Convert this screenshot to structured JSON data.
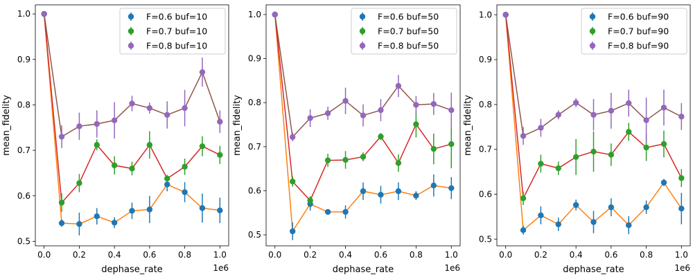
{
  "chart_data": [
    {
      "type": "scatter",
      "xlabel": "dephase_rate",
      "ylabel": "mean_fidelity",
      "x_offset_label": "1e6",
      "xlim": [
        -0.05,
        1.05
      ],
      "ylim": [
        0.49,
        1.02
      ],
      "xticks": [
        0.0,
        0.2,
        0.4,
        0.6,
        0.8,
        1.0
      ],
      "xtick_labels": [
        "0.0",
        "0.2",
        "0.4",
        "0.6",
        "0.8",
        "1.0"
      ],
      "yticks": [
        0.5,
        0.6,
        0.7,
        0.8,
        0.9,
        1.0
      ],
      "ytick_labels": [
        "0.5",
        "0.6",
        "0.7",
        "0.8",
        "0.9",
        "1.0"
      ],
      "legend_position": "top-right",
      "x": [
        0.0,
        0.1,
        0.2,
        0.3,
        0.4,
        0.5,
        0.6,
        0.7,
        0.8,
        0.9,
        1.0
      ],
      "series": [
        {
          "name": "F=0.6 buf=10",
          "marker_color": "#1f77b4",
          "line_color": "#ff7f0e",
          "values": [
            1.0,
            0.54,
            0.538,
            0.555,
            0.541,
            0.567,
            0.57,
            0.625,
            0.608,
            0.573,
            0.568
          ],
          "errors": [
            0.0,
            0.008,
            0.025,
            0.018,
            0.012,
            0.018,
            0.03,
            0.015,
            0.022,
            0.032,
            0.028
          ]
        },
        {
          "name": "F=0.7 buf=10",
          "marker_color": "#2ca02c",
          "line_color": "#d62728",
          "values": [
            1.0,
            0.585,
            0.628,
            0.712,
            0.667,
            0.66,
            0.712,
            0.638,
            0.664,
            0.709,
            0.69
          ],
          "errors": [
            0.0,
            0.02,
            0.02,
            0.012,
            0.02,
            0.015,
            0.03,
            0.008,
            0.018,
            0.022,
            0.02
          ]
        },
        {
          "name": "F=0.8 buf=10",
          "marker_color": "#9467bd",
          "line_color": "#8c564b",
          "values": [
            1.0,
            0.73,
            0.753,
            0.758,
            0.766,
            0.803,
            0.793,
            0.778,
            0.793,
            0.872,
            0.763
          ],
          "errors": [
            0.0,
            0.025,
            0.03,
            0.03,
            0.04,
            0.017,
            0.012,
            0.03,
            0.04,
            0.032,
            0.025
          ]
        }
      ]
    },
    {
      "type": "scatter",
      "xlabel": "dephase_rate",
      "ylabel": "mean_fidelity",
      "x_offset_label": "1e6",
      "xlim": [
        -0.05,
        1.05
      ],
      "ylim": [
        0.475,
        1.022
      ],
      "xticks": [
        0.0,
        0.2,
        0.4,
        0.6,
        0.8,
        1.0
      ],
      "xtick_labels": [
        "0.0",
        "0.2",
        "0.4",
        "0.6",
        "0.8",
        "1.0"
      ],
      "yticks": [
        0.5,
        0.6,
        0.7,
        0.8,
        0.9,
        1.0
      ],
      "ytick_labels": [
        "0.5",
        "0.6",
        "0.7",
        "0.8",
        "0.9",
        "1.0"
      ],
      "legend_position": "top-right",
      "x": [
        0.0,
        0.1,
        0.2,
        0.3,
        0.4,
        0.5,
        0.6,
        0.7,
        0.8,
        0.9,
        1.0
      ],
      "series": [
        {
          "name": "F=0.6 buf=50",
          "marker_color": "#1f77b4",
          "line_color": "#ff7f0e",
          "values": [
            1.0,
            0.508,
            0.57,
            0.552,
            0.552,
            0.599,
            0.591,
            0.599,
            0.589,
            0.612,
            0.606
          ],
          "errors": [
            0.0,
            0.02,
            0.015,
            0.005,
            0.015,
            0.02,
            0.02,
            0.02,
            0.01,
            0.025,
            0.025
          ]
        },
        {
          "name": "F=0.7 buf=50",
          "marker_color": "#2ca02c",
          "line_color": "#d62728",
          "values": [
            1.0,
            0.621,
            0.578,
            0.669,
            0.67,
            0.677,
            0.723,
            0.663,
            0.751,
            0.695,
            0.706
          ],
          "errors": [
            0.0,
            0.012,
            0.01,
            0.015,
            0.02,
            0.01,
            0.008,
            0.02,
            0.03,
            0.035,
            0.055
          ]
        },
        {
          "name": "F=0.8 buf=50",
          "marker_color": "#9467bd",
          "line_color": "#8c564b",
          "values": [
            1.0,
            0.722,
            0.765,
            0.776,
            0.804,
            0.771,
            0.783,
            0.838,
            0.795,
            0.797,
            0.783
          ],
          "errors": [
            0.0,
            0.01,
            0.02,
            0.015,
            0.03,
            0.025,
            0.025,
            0.025,
            0.02,
            0.025,
            0.04
          ]
        }
      ]
    },
    {
      "type": "scatter",
      "xlabel": "dephase_rate",
      "ylabel": "mean_fidelity",
      "x_offset_label": "1e6",
      "xlim": [
        -0.05,
        1.05
      ],
      "ylim": [
        0.485,
        1.022
      ],
      "xticks": [
        0.0,
        0.2,
        0.4,
        0.6,
        0.8,
        1.0
      ],
      "xtick_labels": [
        "0.0",
        "0.2",
        "0.4",
        "0.6",
        "0.8",
        "1.0"
      ],
      "yticks": [
        0.5,
        0.6,
        0.7,
        0.8,
        0.9,
        1.0
      ],
      "ytick_labels": [
        "0.5",
        "0.6",
        "0.7",
        "0.8",
        "0.9",
        "1.0"
      ],
      "legend_position": "top-right",
      "x": [
        0.0,
        0.1,
        0.2,
        0.3,
        0.4,
        0.5,
        0.6,
        0.7,
        0.8,
        0.9,
        1.0
      ],
      "series": [
        {
          "name": "F=0.6 buf=90",
          "marker_color": "#1f77b4",
          "line_color": "#ff7f0e",
          "values": [
            1.0,
            0.52,
            0.553,
            0.533,
            0.576,
            0.538,
            0.571,
            0.531,
            0.571,
            0.626,
            0.568
          ],
          "errors": [
            0.0,
            0.01,
            0.02,
            0.015,
            0.012,
            0.025,
            0.02,
            0.02,
            0.015,
            0.008,
            0.035
          ]
        },
        {
          "name": "F=0.7 buf=90",
          "marker_color": "#2ca02c",
          "line_color": "#d62728",
          "values": [
            1.0,
            0.591,
            0.668,
            0.658,
            0.683,
            0.695,
            0.688,
            0.739,
            0.704,
            0.712,
            0.636
          ],
          "errors": [
            0.0,
            0.015,
            0.02,
            0.015,
            0.04,
            0.045,
            0.025,
            0.02,
            0.03,
            0.03,
            0.02
          ]
        },
        {
          "name": "F=0.8 buf=90",
          "marker_color": "#9467bd",
          "line_color": "#8c564b",
          "values": [
            1.0,
            0.73,
            0.748,
            0.777,
            0.804,
            0.777,
            0.786,
            0.803,
            0.765,
            0.793,
            0.773
          ],
          "errors": [
            0.0,
            0.02,
            0.02,
            0.01,
            0.01,
            0.035,
            0.04,
            0.03,
            0.05,
            0.04,
            0.03
          ]
        }
      ]
    }
  ]
}
